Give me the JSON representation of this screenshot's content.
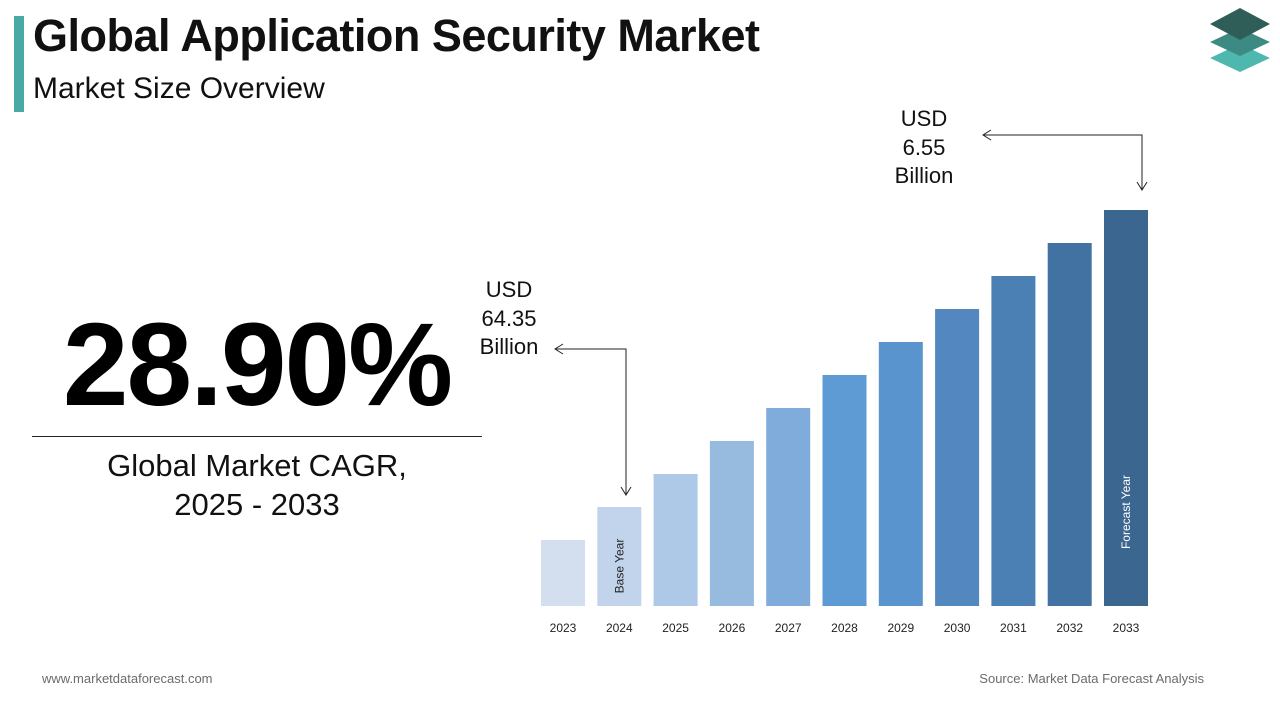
{
  "header": {
    "title": "Global Application Security Market",
    "subtitle": "Market Size Overview"
  },
  "cagr": {
    "value": "28.90%",
    "label_line1": "Global Market CAGR,",
    "label_line2": "2025 - 2033"
  },
  "annotations": {
    "start": {
      "line1": "USD",
      "line2": "64.35",
      "line3": "Billion"
    },
    "end": {
      "line1": "USD",
      "line2": "6.55",
      "line3": "Billion"
    }
  },
  "chart_data": {
    "type": "bar",
    "categories": [
      "2023",
      "2024",
      "2025",
      "2026",
      "2027",
      "2028",
      "2029",
      "2030",
      "2031",
      "2032",
      "2033"
    ],
    "values": [
      2,
      3,
      4,
      5,
      6,
      7,
      8,
      9,
      10,
      11,
      12
    ],
    "ylim": [
      0,
      12
    ],
    "bar_labels": {
      "2024": "Base Year",
      "2033": "Forecast Year"
    },
    "colors": [
      "#d3deef",
      "#c2d4ec",
      "#aec8e7",
      "#97badf",
      "#80acdc",
      "#5e9bd5",
      "#5994ce",
      "#5288bf",
      "#4b80b4",
      "#4272a1",
      "#3b6690"
    ],
    "grid": false
  },
  "footer": {
    "website": "www.marketdataforecast.com",
    "source": "Source: Market Data Forecast Analysis"
  },
  "logo": {
    "icon": "stacked-layers-icon",
    "colors": [
      "#2f5d58",
      "#3d8a83",
      "#4fb8ae"
    ]
  }
}
